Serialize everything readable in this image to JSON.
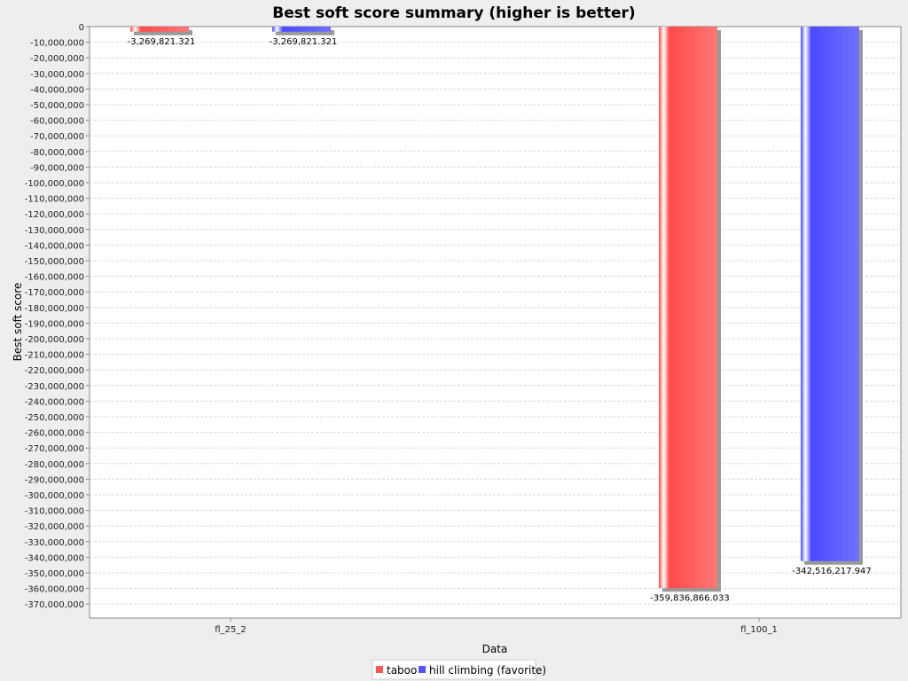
{
  "chart_data": {
    "type": "bar",
    "title": "Best soft score summary (higher is better)",
    "xlabel": "Data",
    "ylabel": "Best soft score",
    "categories": [
      "fl_25_2",
      "fl_100_1"
    ],
    "series": [
      {
        "name": "taboo",
        "color": "#ff5555",
        "values": [
          -3269821.321,
          -359836866.033
        ],
        "labels": [
          "-3,269,821.321",
          "-359,836,866.033"
        ]
      },
      {
        "name": "hill climbing (favorite)",
        "color": "#5555ff",
        "values": [
          -3269821.321,
          -342516217.947
        ],
        "labels": [
          "-3,269,821.321",
          "-342,516,217.947"
        ]
      }
    ],
    "ylim": [
      -375000000,
      0
    ],
    "ytick_step": 10000000,
    "yticks": [
      "0",
      "-10,000,000",
      "-20,000,000",
      "-30,000,000",
      "-40,000,000",
      "-50,000,000",
      "-60,000,000",
      "-70,000,000",
      "-80,000,000",
      "-90,000,000",
      "-100,000,000",
      "-110,000,000",
      "-120,000,000",
      "-130,000,000",
      "-140,000,000",
      "-150,000,000",
      "-160,000,000",
      "-170,000,000",
      "-180,000,000",
      "-190,000,000",
      "-200,000,000",
      "-210,000,000",
      "-220,000,000",
      "-230,000,000",
      "-240,000,000",
      "-250,000,000",
      "-260,000,000",
      "-270,000,000",
      "-280,000,000",
      "-290,000,000",
      "-300,000,000",
      "-310,000,000",
      "-320,000,000",
      "-330,000,000",
      "-340,000,000",
      "-350,000,000",
      "-360,000,000",
      "-370,000,000"
    ],
    "grid": true,
    "legend_position": "bottom"
  }
}
